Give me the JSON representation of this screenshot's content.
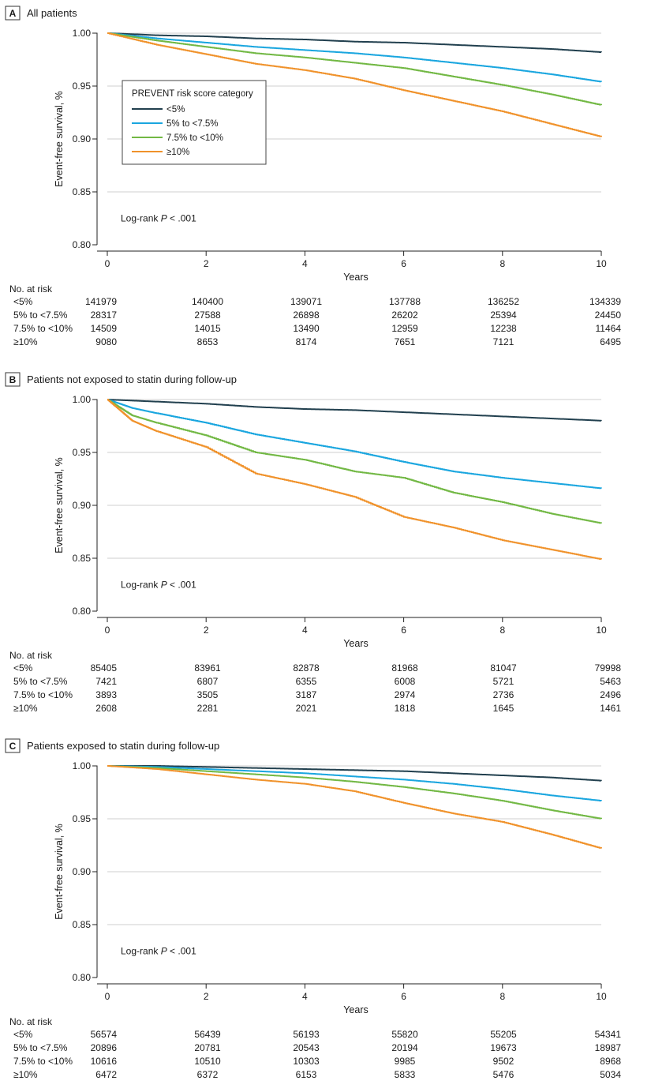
{
  "legend": {
    "title": "PREVENT risk score category",
    "entries": [
      "<5%",
      "5% to <7.5%",
      "7.5% to <10%",
      "≥10%"
    ],
    "colors": [
      "#22404f",
      "#1aa6df",
      "#72b844",
      "#f0922b"
    ]
  },
  "risk_table": {
    "title": "No. at risk",
    "rows": [
      "<5%",
      "5% to <7.5%",
      "7.5% to <10%",
      "≥10%"
    ]
  },
  "chart_data": [
    {
      "type": "line",
      "letter": "A",
      "title": "All patients",
      "xlabel": "Years",
      "ylabel": "Event-free survival, %",
      "xlim": [
        0,
        10
      ],
      "ylim": [
        0.8,
        1.0
      ],
      "xticks": [
        "0",
        "2",
        "4",
        "6",
        "8",
        "10"
      ],
      "yticks": [
        "0.80",
        "0.85",
        "0.90",
        "0.95",
        "1.00"
      ],
      "annotation": "Log-rank P < .001",
      "legend_position": "upper-left",
      "x": [
        0,
        1,
        2,
        3,
        4,
        5,
        6,
        7,
        8,
        9,
        10
      ],
      "series": [
        {
          "name": "<5%",
          "values": [
            1.0,
            0.998,
            0.997,
            0.995,
            0.994,
            0.992,
            0.991,
            0.989,
            0.987,
            0.985,
            0.982
          ]
        },
        {
          "name": "5% to <7.5%",
          "values": [
            1.0,
            0.995,
            0.991,
            0.987,
            0.984,
            0.981,
            0.977,
            0.972,
            0.967,
            0.961,
            0.954
          ]
        },
        {
          "name": "7.5% to <10%",
          "values": [
            1.0,
            0.993,
            0.987,
            0.981,
            0.977,
            0.972,
            0.967,
            0.959,
            0.951,
            0.942,
            0.932
          ]
        },
        {
          "name": "≥10%",
          "values": [
            1.0,
            0.989,
            0.98,
            0.971,
            0.965,
            0.957,
            0.946,
            0.936,
            0.926,
            0.914,
            0.902
          ]
        }
      ],
      "at_risk": [
        [
          "141979",
          "140400",
          "139071",
          "137788",
          "136252",
          "134339"
        ],
        [
          "28317",
          "27588",
          "26898",
          "26202",
          "25394",
          "24450"
        ],
        [
          "14509",
          "14015",
          "13490",
          "12959",
          "12238",
          "11464"
        ],
        [
          "9080",
          "8653",
          "8174",
          "7651",
          "7121",
          "6495"
        ]
      ]
    },
    {
      "type": "line",
      "letter": "B",
      "title": "Patients not exposed to statin during follow-up",
      "xlabel": "Years",
      "ylabel": "Event-free survival, %",
      "xlim": [
        0,
        10
      ],
      "ylim": [
        0.8,
        1.0
      ],
      "xticks": [
        "0",
        "2",
        "4",
        "6",
        "8",
        "10"
      ],
      "yticks": [
        "0.80",
        "0.85",
        "0.90",
        "0.95",
        "1.00"
      ],
      "annotation": "Log-rank P < .001",
      "x": [
        0,
        0.5,
        1,
        2,
        3,
        4,
        5,
        6,
        7,
        8,
        9,
        10
      ],
      "series": [
        {
          "name": "<5%",
          "values": [
            1.0,
            0.999,
            0.998,
            0.996,
            0.993,
            0.991,
            0.99,
            0.988,
            0.986,
            0.984,
            0.982,
            0.98
          ]
        },
        {
          "name": "5% to <7.5%",
          "values": [
            1.0,
            0.992,
            0.987,
            0.978,
            0.967,
            0.959,
            0.951,
            0.941,
            0.932,
            0.926,
            0.921,
            0.916
          ]
        },
        {
          "name": "7.5% to <10%",
          "values": [
            1.0,
            0.985,
            0.978,
            0.966,
            0.95,
            0.943,
            0.932,
            0.926,
            0.912,
            0.903,
            0.892,
            0.883
          ]
        },
        {
          "name": "≥10%",
          "values": [
            1.0,
            0.98,
            0.97,
            0.955,
            0.93,
            0.92,
            0.908,
            0.889,
            0.879,
            0.867,
            0.858,
            0.849
          ]
        }
      ],
      "at_risk": [
        [
          "85405",
          "83961",
          "82878",
          "81968",
          "81047",
          "79998"
        ],
        [
          "7421",
          "6807",
          "6355",
          "6008",
          "5721",
          "5463"
        ],
        [
          "3893",
          "3505",
          "3187",
          "2974",
          "2736",
          "2496"
        ],
        [
          "2608",
          "2281",
          "2021",
          "1818",
          "1645",
          "1461"
        ]
      ]
    },
    {
      "type": "line",
      "letter": "C",
      "title": "Patients exposed to statin during follow-up",
      "xlabel": "Years",
      "ylabel": "Event-free survival, %",
      "xlim": [
        0,
        10
      ],
      "ylim": [
        0.8,
        1.0
      ],
      "xticks": [
        "0",
        "2",
        "4",
        "6",
        "8",
        "10"
      ],
      "yticks": [
        "0.80",
        "0.85",
        "0.90",
        "0.95",
        "1.00"
      ],
      "annotation": "Log-rank P < .001",
      "x": [
        0,
        1,
        2,
        3,
        4,
        5,
        6,
        7,
        8,
        9,
        10
      ],
      "series": [
        {
          "name": "<5%",
          "values": [
            1.0,
            1.0,
            0.999,
            0.998,
            0.997,
            0.996,
            0.995,
            0.993,
            0.991,
            0.989,
            0.986
          ]
        },
        {
          "name": "5% to <7.5%",
          "values": [
            1.0,
            0.999,
            0.997,
            0.995,
            0.993,
            0.99,
            0.987,
            0.983,
            0.978,
            0.972,
            0.967
          ]
        },
        {
          "name": "7.5% to <10%",
          "values": [
            1.0,
            0.998,
            0.995,
            0.992,
            0.989,
            0.985,
            0.98,
            0.974,
            0.967,
            0.958,
            0.95
          ]
        },
        {
          "name": "≥10%",
          "values": [
            1.0,
            0.997,
            0.992,
            0.987,
            0.983,
            0.976,
            0.965,
            0.955,
            0.947,
            0.935,
            0.922
          ]
        }
      ],
      "at_risk": [
        [
          "56574",
          "56439",
          "56193",
          "55820",
          "55205",
          "54341"
        ],
        [
          "20896",
          "20781",
          "20543",
          "20194",
          "19673",
          "18987"
        ],
        [
          "10616",
          "10510",
          "10303",
          "9985",
          "9502",
          "8968"
        ],
        [
          "6472",
          "6372",
          "6153",
          "5833",
          "5476",
          "5034"
        ]
      ]
    }
  ]
}
